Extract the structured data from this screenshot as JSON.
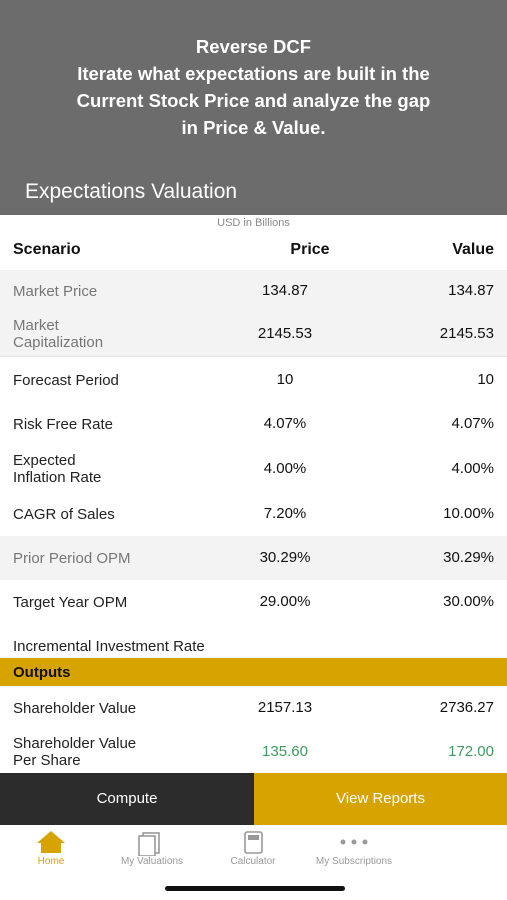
{
  "header": {
    "title": "Reverse DCF",
    "description": [
      "Iterate what expectations are built in the",
      "Current Stock Price and analyze the gap",
      "in Price & Value."
    ],
    "section_title": "Expectations Valuation"
  },
  "table": {
    "unit": "USD in Billions",
    "columns": [
      "Scenario",
      "Price",
      "Value"
    ],
    "rows": [
      {
        "label": [
          "Market Price"
        ],
        "price": "134.87",
        "value": "134.87",
        "disabled": true
      },
      {
        "label": [
          "Market",
          "Capitalization"
        ],
        "price": "2145.53",
        "value": "2145.53",
        "disabled": true
      },
      {
        "label": [
          "Forecast Period"
        ],
        "price": "10",
        "value": "10",
        "disabled": false
      },
      {
        "label": [
          "Risk Free Rate"
        ],
        "price": "4.07%",
        "value": "4.07%",
        "disabled": false
      },
      {
        "label": [
          "Expected",
          "Inflation Rate"
        ],
        "price": "4.00%",
        "value": "4.00%",
        "disabled": false
      },
      {
        "label": [
          "CAGR of Sales"
        ],
        "price": "7.20%",
        "value": "10.00%",
        "disabled": false
      },
      {
        "label": [
          "Prior Period OPM"
        ],
        "price": "30.29%",
        "value": "30.29%",
        "disabled": true
      },
      {
        "label": [
          "Target Year OPM"
        ],
        "price": "29.00%",
        "value": "30.00%",
        "disabled": false
      },
      {
        "label": [
          "Incremental Investment Rate"
        ],
        "price": "",
        "value": "",
        "disabled": false
      }
    ]
  },
  "outputs": {
    "title": "Outputs",
    "rows": [
      {
        "label": [
          "Shareholder Value"
        ],
        "price": "2157.13",
        "value": "2736.27"
      },
      {
        "label": [
          "Shareholder Value",
          "Per Share"
        ],
        "price": "135.60",
        "value": "172.00"
      }
    ]
  },
  "buttons": [
    "Compute",
    "View Reports"
  ],
  "tabs": [
    "Home",
    "My Valuations",
    "Calculator",
    "My Subscriptions"
  ]
}
